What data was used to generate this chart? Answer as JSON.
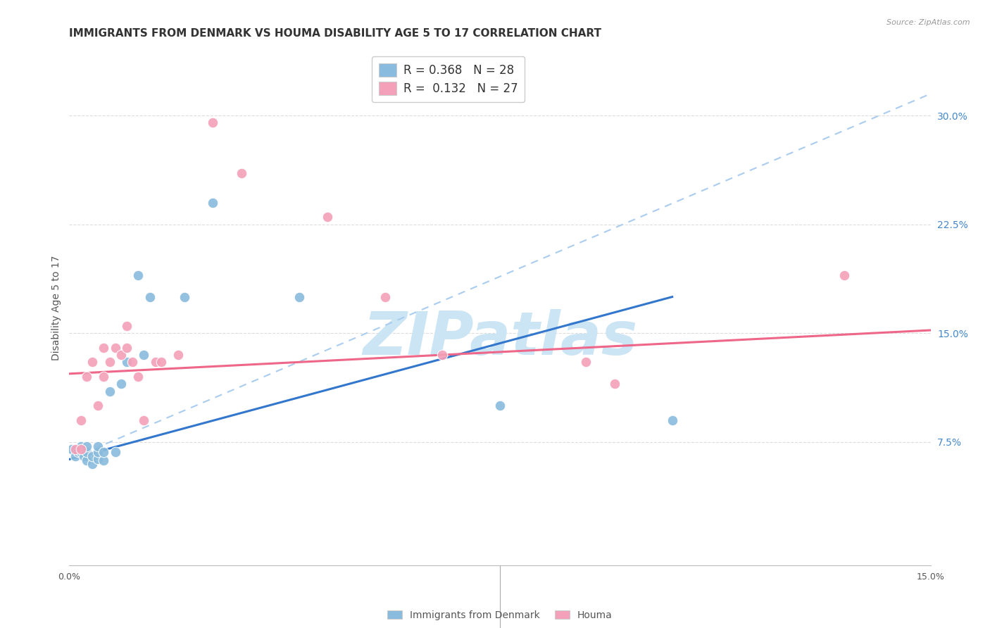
{
  "title": "IMMIGRANTS FROM DENMARK VS HOUMA DISABILITY AGE 5 TO 17 CORRELATION CHART",
  "source": "Source: ZipAtlas.com",
  "ylabel": "Disability Age 5 to 17",
  "xlim": [
    0.0,
    0.15
  ],
  "ylim": [
    -0.01,
    0.345
  ],
  "xticks": [
    0.0,
    0.03,
    0.06,
    0.09,
    0.12,
    0.15
  ],
  "yticks_right": [
    0.075,
    0.15,
    0.225,
    0.3
  ],
  "yticklabels_right": [
    "7.5%",
    "15.0%",
    "22.5%",
    "30.0%"
  ],
  "blue_color": "#88bbdd",
  "pink_color": "#f4a0b8",
  "blue_line_color": "#3377cc",
  "pink_line_color": "#ee6688",
  "dashed_line_color": "#aaccee",
  "watermark": "ZIPatlas",
  "watermark_color": "#cce5f5",
  "blue_scatter_x": [
    0.0005,
    0.001,
    0.0015,
    0.002,
    0.002,
    0.0025,
    0.003,
    0.003,
    0.003,
    0.004,
    0.004,
    0.005,
    0.005,
    0.005,
    0.006,
    0.006,
    0.007,
    0.008,
    0.009,
    0.01,
    0.012,
    0.013,
    0.014,
    0.02,
    0.025,
    0.04,
    0.075,
    0.105
  ],
  "blue_scatter_y": [
    0.07,
    0.065,
    0.068,
    0.068,
    0.072,
    0.065,
    0.062,
    0.068,
    0.072,
    0.06,
    0.065,
    0.063,
    0.068,
    0.072,
    0.062,
    0.068,
    0.11,
    0.068,
    0.115,
    0.13,
    0.19,
    0.135,
    0.175,
    0.175,
    0.24,
    0.175,
    0.1,
    0.09
  ],
  "pink_scatter_x": [
    0.001,
    0.002,
    0.002,
    0.003,
    0.004,
    0.005,
    0.006,
    0.006,
    0.007,
    0.008,
    0.009,
    0.01,
    0.01,
    0.011,
    0.012,
    0.013,
    0.015,
    0.016,
    0.019,
    0.025,
    0.03,
    0.045,
    0.055,
    0.065,
    0.09,
    0.095,
    0.135
  ],
  "pink_scatter_y": [
    0.07,
    0.07,
    0.09,
    0.12,
    0.13,
    0.1,
    0.12,
    0.14,
    0.13,
    0.14,
    0.135,
    0.14,
    0.155,
    0.13,
    0.12,
    0.09,
    0.13,
    0.13,
    0.135,
    0.295,
    0.26,
    0.23,
    0.175,
    0.135,
    0.13,
    0.115,
    0.19
  ],
  "blue_trend_x": [
    0.0,
    0.105
  ],
  "blue_trend_y": [
    0.063,
    0.175
  ],
  "pink_trend_x": [
    0.0,
    0.15
  ],
  "pink_trend_y": [
    0.122,
    0.152
  ],
  "dashed_line_x": [
    0.0,
    0.15
  ],
  "dashed_line_y": [
    0.063,
    0.315
  ],
  "bg_color": "#ffffff",
  "grid_color": "#dddddd",
  "title_fontsize": 11,
  "label_fontsize": 10,
  "tick_fontsize": 9,
  "legend_items": [
    {
      "label": "R = 0.368   N = 28",
      "r_val": "0.368",
      "n_val": "28"
    },
    {
      "label": "R =  0.132   N = 27",
      "r_val": "0.132",
      "n_val": "27"
    }
  ]
}
